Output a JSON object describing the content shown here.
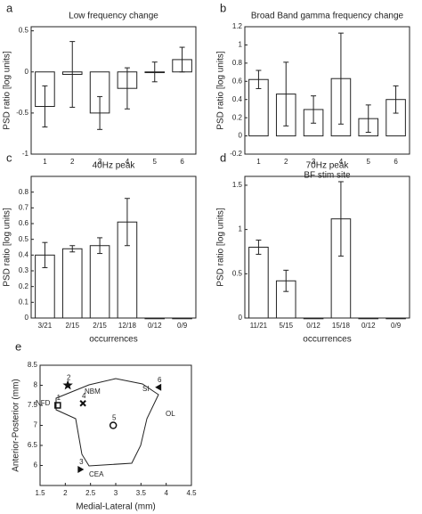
{
  "chart_data": [
    {
      "type": "bar",
      "label": "a",
      "title": "Low frequency change",
      "ylabel": "PSD ratio [log units]",
      "categories": [
        "1",
        "2",
        "3",
        "4",
        "5",
        "6"
      ],
      "values": [
        -0.42,
        -0.03,
        -0.5,
        -0.2,
        0.0,
        0.15
      ],
      "errors": [
        0.25,
        0.4,
        0.2,
        0.25,
        0.12,
        0.15
      ],
      "ylim": [
        -1,
        0.55
      ],
      "yticks": [
        -1,
        -0.5,
        0,
        0.5
      ],
      "color": "#ffffff"
    },
    {
      "type": "bar",
      "label": "b",
      "title": "Broad Band gamma frequency change",
      "ylabel": "PSD ratio [log units]",
      "xlabel": "BF stim site",
      "categories": [
        "1",
        "2",
        "3",
        "4",
        "5",
        "6"
      ],
      "values": [
        0.62,
        0.46,
        0.29,
        0.63,
        0.19,
        0.4
      ],
      "errors": [
        0.1,
        0.35,
        0.15,
        0.5,
        0.15,
        0.15
      ],
      "ylim": [
        -0.2,
        1.2
      ],
      "yticks": [
        -0.2,
        0,
        0.2,
        0.4,
        0.6,
        0.8,
        1,
        1.2
      ],
      "color": "#ffffff"
    },
    {
      "type": "bar",
      "label": "c",
      "title": "40Hz peak",
      "ylabel": "PSD ratio [log units]",
      "xlabel": "occurrences",
      "categories": [
        "3/21",
        "2/15",
        "2/15",
        "12/18",
        "0/12",
        "0/9"
      ],
      "values": [
        0.4,
        0.44,
        0.46,
        0.61,
        0,
        0
      ],
      "errors": [
        0.08,
        0.02,
        0.05,
        0.15,
        0,
        0
      ],
      "ylim": [
        0,
        0.9
      ],
      "yticks": [
        0,
        0.1,
        0.2,
        0.3,
        0.4,
        0.5,
        0.6,
        0.7,
        0.8
      ],
      "color": "#ffffff"
    },
    {
      "type": "bar",
      "label": "d",
      "title": "70Hz peak",
      "ylabel": "PSD ratio [log units]",
      "xlabel": "occurrences",
      "categories": [
        "11/21",
        "5/15",
        "0/12",
        "15/18",
        "0/12",
        "0/9"
      ],
      "values": [
        0.8,
        0.42,
        0,
        1.12,
        0,
        0
      ],
      "errors": [
        0.08,
        0.12,
        0,
        0.42,
        0,
        0
      ],
      "ylim": [
        0,
        1.6
      ],
      "yticks": [
        0,
        0.5,
        1,
        1.5
      ],
      "color": "#ffffff"
    },
    {
      "type": "scatter",
      "label": "e",
      "xlabel": "Medial-Lateral (mm)",
      "ylabel": "Anterior-Posterior (mm)",
      "x": [
        1.85,
        2.05,
        2.3,
        2.35,
        2.95,
        3.85
      ],
      "values": [
        7.5,
        8.0,
        5.9,
        7.55,
        7.0,
        7.95
      ],
      "point_labels": [
        "1",
        "2",
        "3",
        "4",
        "5",
        "6"
      ],
      "markers": [
        "square",
        "star",
        "triangle-right",
        "x",
        "circle",
        "triangle-left"
      ],
      "annotations": [
        "NFD",
        "NBM",
        "SI",
        "OL",
        "CEA"
      ],
      "xlim": [
        1.5,
        4.5
      ],
      "xticks": [
        1.5,
        2,
        2.5,
        3,
        3.5,
        4,
        4.5
      ],
      "ylim": [
        5.5,
        8.5
      ],
      "yticks": [
        6,
        6.5,
        7,
        7.5,
        8,
        8.5
      ]
    }
  ]
}
